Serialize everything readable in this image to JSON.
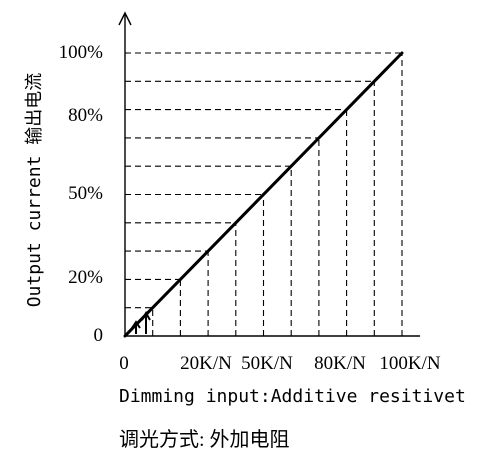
{
  "chart_data": {
    "type": "line",
    "ylabel": "Output current 输出电流",
    "xlabel": "Dimming input:Additive resitivet",
    "caption": "调光方式: 外加电阻",
    "x_tick_labels": [
      "0",
      "20K/N",
      "50K/N",
      "80K/N",
      "100K/N"
    ],
    "y_tick_labels": [
      "0",
      "20%",
      "50%",
      "80%",
      "100%"
    ],
    "x_unit": "K/N",
    "y_unit": "%",
    "xlim": [
      0,
      100
    ],
    "ylim": [
      0,
      100
    ],
    "series": [
      {
        "x": [
          0,
          100
        ],
        "y": [
          0,
          100
        ]
      }
    ],
    "grid": "dashed",
    "colors": {
      "line": "#000000",
      "axis": "#000000",
      "background": "#ffffff"
    }
  }
}
